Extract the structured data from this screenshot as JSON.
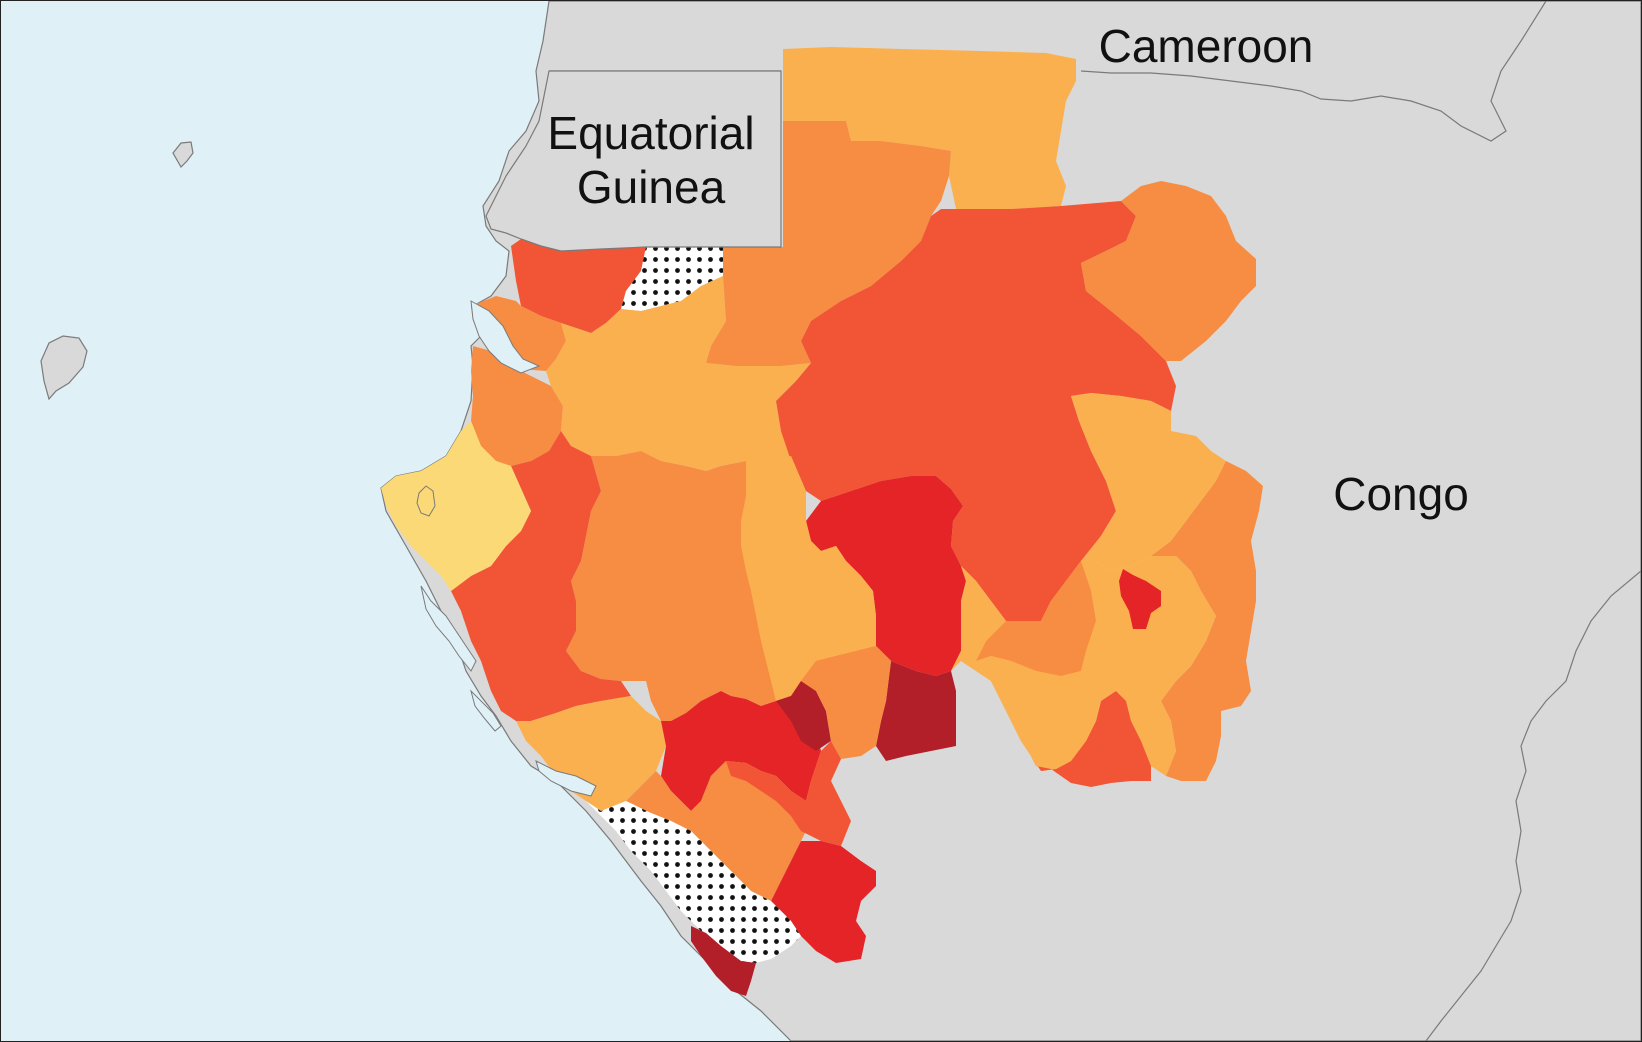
{
  "map": {
    "colors": {
      "sea": "#dff1f7",
      "land": "#d9d9d9",
      "border": "#7a7a7a",
      "scale": [
        "#fcd977",
        "#fbb04f",
        "#f68d42",
        "#f15535",
        "#e42427",
        "#b31f29"
      ],
      "no_data": "dotted pattern"
    },
    "country_labels": {
      "cameroon": "Cameroon",
      "equatorial_guinea_line1": "Equatorial",
      "equatorial_guinea_line2": "Guinea",
      "congo": "Congo"
    }
  }
}
